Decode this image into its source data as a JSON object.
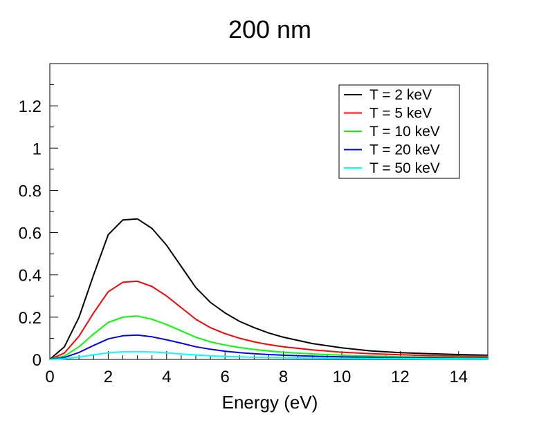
{
  "chart_data": {
    "type": "line",
    "title": "200 nm",
    "xlabel": "Energy (eV)",
    "ylabel": "",
    "xlim": [
      0,
      15
    ],
    "ylim": [
      0,
      1.4
    ],
    "x_ticks": [
      "0",
      "2",
      "4",
      "6",
      "8",
      "10",
      "12",
      "14"
    ],
    "y_ticks": [
      "0",
      "0.2",
      "0.4",
      "0.6",
      "0.8",
      "1",
      "1.2"
    ],
    "grid": false,
    "legend_position": "top-right",
    "x": [
      0,
      0.5,
      1,
      1.5,
      2,
      2.5,
      3,
      3.5,
      4,
      4.5,
      5,
      5.5,
      6,
      6.5,
      7,
      7.5,
      8,
      9,
      10,
      11,
      12,
      13,
      14,
      15
    ],
    "series": [
      {
        "name": "T = 2 keV",
        "color": "#000000",
        "values": [
          0,
          0.06,
          0.2,
          0.4,
          0.59,
          0.66,
          0.665,
          0.62,
          0.54,
          0.44,
          0.34,
          0.27,
          0.22,
          0.18,
          0.15,
          0.125,
          0.105,
          0.075,
          0.055,
          0.04,
          0.032,
          0.027,
          0.023,
          0.02
        ]
      },
      {
        "name": "T = 5 keV",
        "color": "#ff0000",
        "values": [
          0,
          0.03,
          0.11,
          0.22,
          0.32,
          0.365,
          0.37,
          0.345,
          0.3,
          0.245,
          0.19,
          0.15,
          0.122,
          0.1,
          0.083,
          0.07,
          0.06,
          0.045,
          0.034,
          0.027,
          0.022,
          0.018,
          0.016,
          0.015
        ]
      },
      {
        "name": "T = 10 keV",
        "color": "#00ff00",
        "values": [
          0,
          0.016,
          0.06,
          0.12,
          0.175,
          0.2,
          0.205,
          0.19,
          0.165,
          0.135,
          0.105,
          0.083,
          0.068,
          0.056,
          0.047,
          0.04,
          0.034,
          0.026,
          0.02,
          0.016,
          0.013,
          0.011,
          0.01,
          0.009
        ]
      },
      {
        "name": "T = 20 keV",
        "color": "#0000ff",
        "values": [
          0,
          0.009,
          0.033,
          0.066,
          0.097,
          0.112,
          0.115,
          0.107,
          0.093,
          0.077,
          0.06,
          0.048,
          0.039,
          0.032,
          0.027,
          0.023,
          0.02,
          0.015,
          0.012,
          0.01,
          0.008,
          0.007,
          0.006,
          0.006
        ]
      },
      {
        "name": "T = 50 keV",
        "color": "#00ffff",
        "values": [
          0,
          0.003,
          0.011,
          0.022,
          0.031,
          0.036,
          0.037,
          0.035,
          0.031,
          0.026,
          0.021,
          0.017,
          0.014,
          0.012,
          0.01,
          0.009,
          0.008,
          0.006,
          0.005,
          0.004,
          0.004,
          0.003,
          0.003,
          0.003
        ]
      }
    ]
  }
}
